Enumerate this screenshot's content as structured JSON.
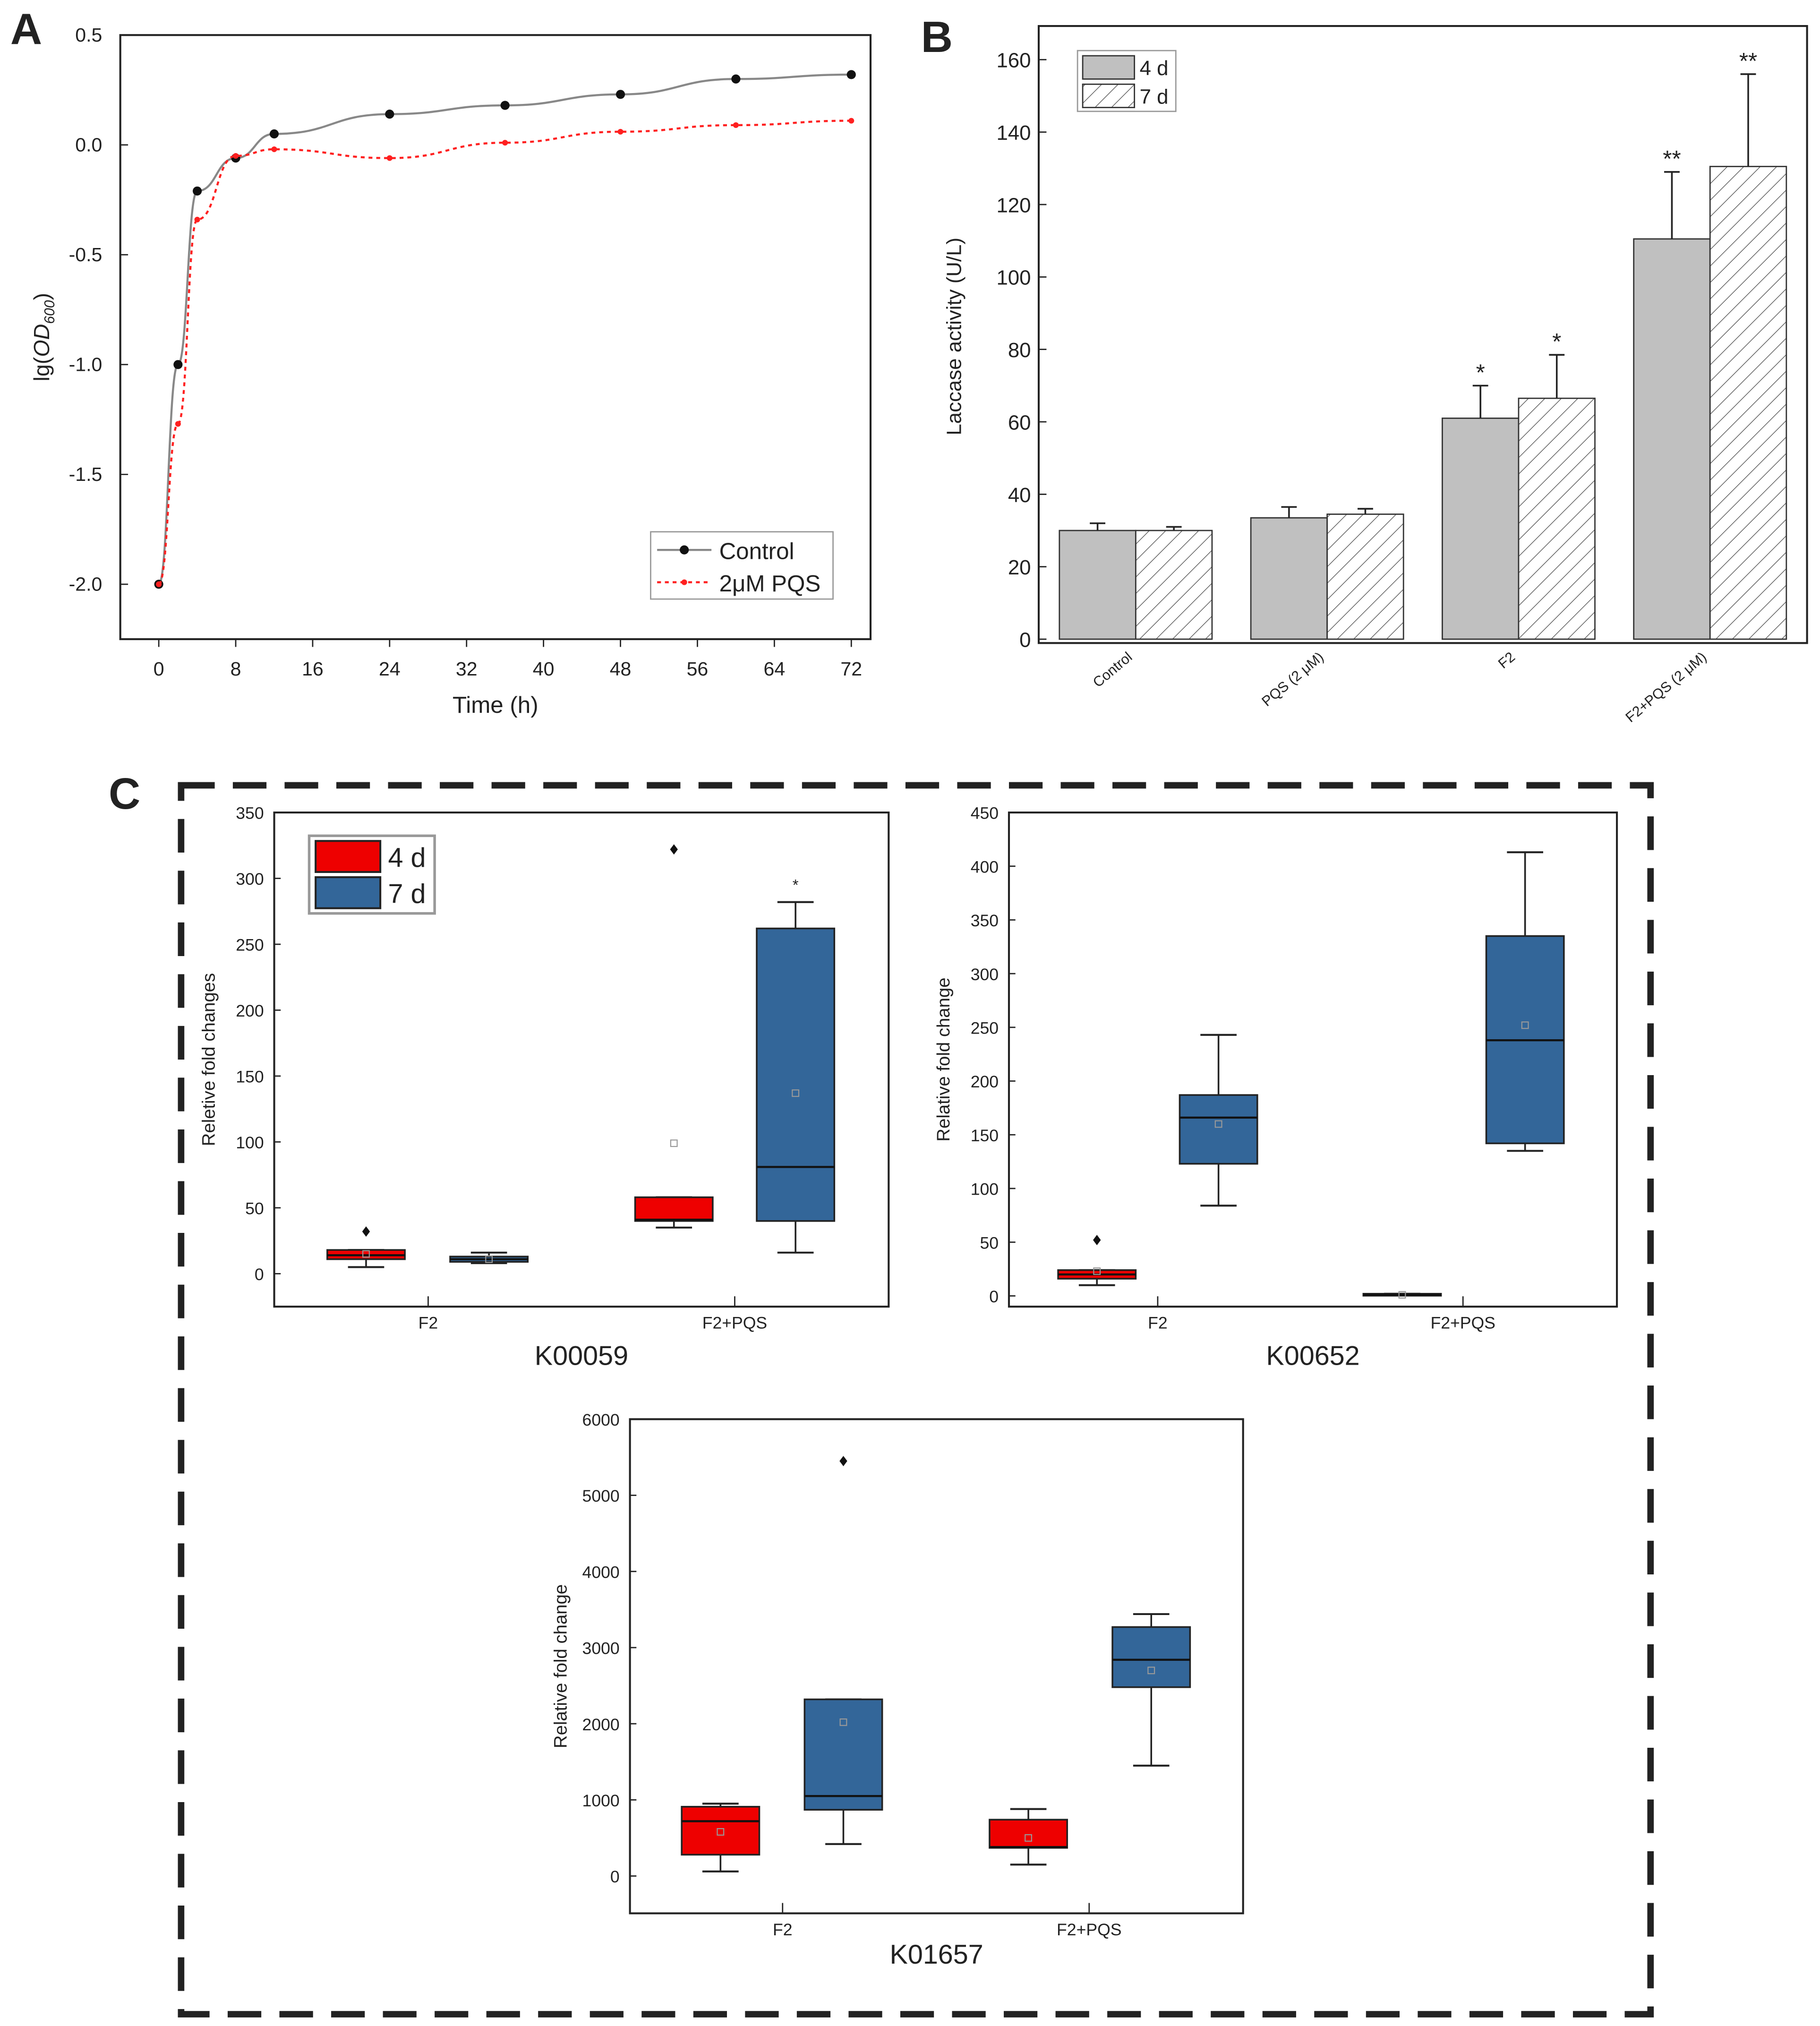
{
  "colors": {
    "control": "#111111",
    "pqs": "#ff2020",
    "gray_bar": "#c0c0c0",
    "red_box": "#ee0000",
    "blue_box": "#336699"
  },
  "chart_data": [
    {
      "panel": "A",
      "type": "line",
      "xlabel": "Time (h)",
      "ylabel": "lg(OD600)",
      "ylabel_main": "lg(",
      "ylabel_italic": "OD",
      "ylabel_sub": "600",
      "ylabel_close": ")",
      "xlim": [
        -4,
        74
      ],
      "ylim": [
        -2.25,
        0.5
      ],
      "xticks": [
        0,
        8,
        16,
        24,
        32,
        40,
        48,
        56,
        64,
        72
      ],
      "xtick_labels": [
        "0",
        "8",
        "16",
        "24",
        "32",
        "40",
        "48",
        "56",
        "64",
        "72"
      ],
      "yticks": [
        0.5,
        0.0,
        -0.5,
        -1.0,
        -1.5,
        -2.0
      ],
      "ytick_labels": [
        "0.5",
        "0.0",
        "-0.5",
        "-1.0",
        "-1.5",
        "-2.0"
      ],
      "legend": "bottom-right",
      "series": [
        {
          "name": "Control",
          "x": [
            0,
            2,
            4,
            8,
            12,
            24,
            36,
            48,
            60,
            72
          ],
          "y": [
            -2.0,
            -1.0,
            -0.21,
            -0.06,
            0.05,
            0.14,
            0.18,
            0.23,
            0.3,
            0.32
          ]
        },
        {
          "name": "2μM PQS",
          "x": [
            0,
            2,
            4,
            8,
            12,
            24,
            36,
            48,
            60,
            72
          ],
          "y": [
            -2.0,
            -1.27,
            -0.34,
            -0.05,
            -0.02,
            -0.06,
            0.01,
            0.06,
            0.09,
            0.11
          ]
        }
      ]
    },
    {
      "panel": "B",
      "type": "bar",
      "ylabel": "Laccase activity  (U/L)",
      "ylim": [
        0,
        169
      ],
      "yticks": [
        0,
        20,
        40,
        60,
        80,
        100,
        120,
        140,
        160
      ],
      "ytick_labels": [
        "0",
        "20",
        "40",
        "60",
        "80",
        "100",
        "120",
        "140",
        "160"
      ],
      "categories": [
        "Control",
        "PQS (2 μM)",
        "F2",
        "F2+PQS (2 μM)"
      ],
      "legend": "top-left",
      "series": [
        {
          "name": "4 d",
          "values": [
            30,
            33.5,
            61,
            110.5
          ],
          "errors": [
            2,
            3,
            9,
            18.5
          ],
          "annotations": [
            "",
            "",
            "*",
            "**"
          ]
        },
        {
          "name": "7 d",
          "values": [
            30,
            34.5,
            66.5,
            130.5
          ],
          "errors": [
            1,
            1.5,
            12,
            25.5
          ],
          "annotations": [
            "",
            "",
            "*",
            "**"
          ]
        }
      ]
    },
    {
      "panel": "C",
      "type": "box",
      "title": "K00059",
      "ylabel": "Reletive fold changes",
      "ylim": [
        -25,
        350
      ],
      "yticks": [
        0,
        50,
        100,
        150,
        200,
        250,
        300,
        350
      ],
      "ytick_labels": [
        "0",
        "50",
        "100",
        "150",
        "200",
        "250",
        "300",
        "350"
      ],
      "categories": [
        "F2",
        "F2+PQS"
      ],
      "legend": "top-left",
      "series": [
        {
          "name": "4 d",
          "boxes": [
            {
              "min": 5,
              "q1": 11,
              "median": 14,
              "q3": 18,
              "max": 18,
              "mean": 15,
              "outliers": [
                32
              ]
            },
            {
              "min": 35,
              "q1": 40,
              "median": 41,
              "q3": 58,
              "max": 58,
              "mean": 99,
              "outliers": [
                322
              ]
            }
          ]
        },
        {
          "name": "7 d",
          "boxes": [
            {
              "min": 8,
              "q1": 9,
              "median": 11,
              "q3": 13,
              "max": 16,
              "mean": 11,
              "outliers": []
            },
            {
              "min": 16,
              "q1": 40,
              "median": 81,
              "q3": 262,
              "max": 282,
              "mean": 137,
              "outliers": [],
              "annotation": "*",
              "annotation_y": 297
            }
          ]
        }
      ]
    },
    {
      "panel": "C",
      "type": "box",
      "title": "K00652",
      "ylabel": "Relative fold change",
      "ylim": [
        -10,
        450
      ],
      "yticks": [
        0,
        50,
        100,
        150,
        200,
        250,
        300,
        350,
        400,
        450
      ],
      "ytick_labels": [
        "0",
        "50",
        "100",
        "150",
        "200",
        "250",
        "300",
        "350",
        "400",
        "450"
      ],
      "categories": [
        "F2",
        "F2+PQS"
      ],
      "series": [
        {
          "name": "4 d",
          "boxes": [
            {
              "min": 10,
              "q1": 16,
              "median": 20,
              "q3": 24,
              "max": 24,
              "mean": 23,
              "outliers": [
                52
              ]
            },
            {
              "min": 1,
              "q1": 1,
              "median": 1,
              "q3": 2,
              "max": 2,
              "mean": 1,
              "outliers": []
            }
          ]
        },
        {
          "name": "7 d",
          "boxes": [
            {
              "min": 84,
              "q1": 123,
              "median": 166,
              "q3": 187,
              "max": 243,
              "mean": 160,
              "outliers": []
            },
            {
              "min": 135,
              "q1": 142,
              "median": 238,
              "q3": 335,
              "max": 413,
              "mean": 252,
              "outliers": []
            }
          ]
        }
      ]
    },
    {
      "panel": "C",
      "type": "box",
      "title": "K01657",
      "ylabel": "Relative fold change",
      "ylim": [
        -490,
        6000
      ],
      "yticks": [
        0,
        1000,
        2000,
        3000,
        4000,
        5000,
        6000
      ],
      "ytick_labels": [
        "0",
        "1000",
        "2000",
        "3000",
        "4000",
        "5000",
        "6000"
      ],
      "categories": [
        "F2",
        "F2+PQS"
      ],
      "series": [
        {
          "name": "4 d",
          "boxes": [
            {
              "min": 60,
              "q1": 280,
              "median": 720,
              "q3": 910,
              "max": 950,
              "mean": 580,
              "outliers": []
            },
            {
              "min": 150,
              "q1": 370,
              "median": 380,
              "q3": 740,
              "max": 880,
              "mean": 500,
              "outliers": []
            }
          ]
        },
        {
          "name": "7 d",
          "boxes": [
            {
              "min": 420,
              "q1": 870,
              "median": 1050,
              "q3": 2320,
              "max": 2320,
              "mean": 2020,
              "outliers": [
                5450
              ]
            },
            {
              "min": 1450,
              "q1": 2480,
              "median": 2840,
              "q3": 3270,
              "max": 3440,
              "mean": 2700,
              "outliers": []
            }
          ]
        }
      ]
    }
  ],
  "panel_labels": {
    "a": "A",
    "b": "B",
    "c": "C"
  }
}
